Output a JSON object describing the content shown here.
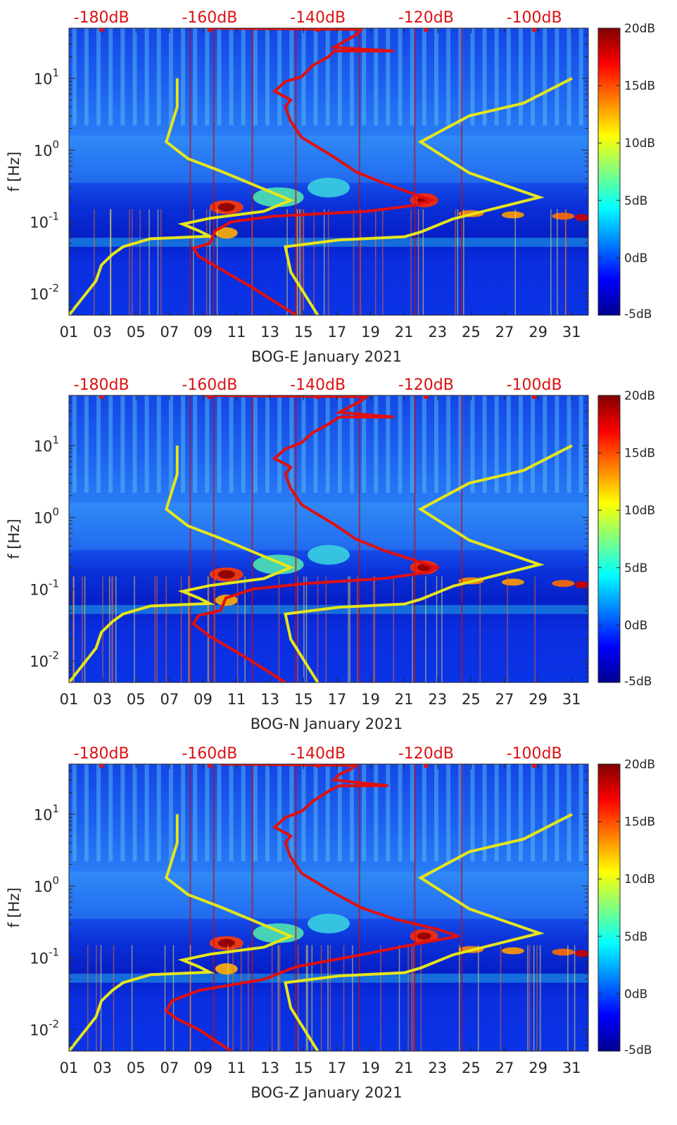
{
  "colors": {
    "noise_model": "#e6e61a",
    "psd_curve": "#e01010",
    "top_scale": "#dd1111",
    "text": "#262626",
    "colormap": [
      "#00008f",
      "#0000ff",
      "#0080ff",
      "#00ffff",
      "#80ff80",
      "#ffff00",
      "#ff8000",
      "#ff0000",
      "#800000"
    ]
  },
  "chart_data": [
    {
      "type": "heatmap",
      "title": "",
      "xlabel": "BOG-E January 2021",
      "ylabel": "f [Hz]",
      "x_ticks": [
        "01",
        "03",
        "05",
        "07",
        "09",
        "11",
        "13",
        "15",
        "17",
        "19",
        "21",
        "23",
        "25",
        "27",
        "29",
        "31"
      ],
      "x_range": [
        1,
        32
      ],
      "y_scale": "log",
      "y_range": [
        0.005,
        50
      ],
      "y_ticks": [
        {
          "base": "10",
          "exp": "1",
          "value": 10
        },
        {
          "base": "10",
          "exp": "0",
          "value": 1
        },
        {
          "base": "10",
          "exp": "-1",
          "value": 0.1
        },
        {
          "base": "10",
          "exp": "-2",
          "value": 0.01
        }
      ],
      "colorbar": {
        "labels": [
          "20dB",
          "15dB",
          "10dB",
          "5dB",
          "0dB",
          "-5dB"
        ],
        "range": [
          -5,
          20
        ]
      },
      "top_scale": {
        "labels": [
          "-180dB",
          "-160dB",
          "-140dB",
          "-120dB",
          "-100dB"
        ],
        "values": [
          -180,
          -160,
          -140,
          -120,
          -100
        ],
        "range": [
          -186,
          -90
        ]
      },
      "noise_model_low": [
        [
          -186,
          0.005
        ],
        [
          -181,
          0.015
        ],
        [
          -180,
          0.025
        ],
        [
          -178,
          0.035
        ],
        [
          -176,
          0.045
        ],
        [
          -171,
          0.058
        ],
        [
          -160,
          0.063
        ],
        [
          -162,
          0.075
        ],
        [
          -165,
          0.093
        ],
        [
          -160,
          0.112
        ],
        [
          -150,
          0.14
        ],
        [
          -145,
          0.2
        ],
        [
          -158,
          0.51
        ],
        [
          -164,
          0.76
        ],
        [
          -168,
          1.3
        ],
        [
          -166,
          4.0
        ],
        [
          -166,
          10
        ]
      ],
      "noise_model_high": [
        [
          -140,
          0.005
        ],
        [
          -145,
          0.02
        ],
        [
          -146,
          0.045
        ],
        [
          -136,
          0.056
        ],
        [
          -124,
          0.062
        ],
        [
          -121,
          0.072
        ],
        [
          -115,
          0.11
        ],
        [
          -99,
          0.22
        ],
        [
          -112,
          0.48
        ],
        [
          -121,
          1.3
        ],
        [
          -112,
          3.0
        ],
        [
          -102,
          4.5
        ],
        [
          -93,
          10
        ]
      ],
      "psd_curve": [
        [
          -144,
          0.005
        ],
        [
          -152,
          0.012
        ],
        [
          -158,
          0.022
        ],
        [
          -162,
          0.033
        ],
        [
          -163,
          0.043
        ],
        [
          -160,
          0.05
        ],
        [
          -159,
          0.075
        ],
        [
          -156,
          0.1
        ],
        [
          -148,
          0.12
        ],
        [
          -131,
          0.14
        ],
        [
          -122,
          0.17
        ],
        [
          -119,
          0.2
        ],
        [
          -122,
          0.24
        ],
        [
          -128,
          0.35
        ],
        [
          -133,
          0.5
        ],
        [
          -137,
          0.8
        ],
        [
          -143,
          1.5
        ],
        [
          -145,
          2.5
        ],
        [
          -146,
          4.0
        ],
        [
          -145,
          5.0
        ],
        [
          -148,
          6.6
        ],
        [
          -146,
          9.0
        ],
        [
          -143,
          10.5
        ],
        [
          -141,
          15
        ],
        [
          -138,
          20
        ],
        [
          -137,
          24
        ],
        [
          -126,
          24
        ],
        [
          -137,
          27
        ],
        [
          -135,
          33
        ],
        [
          -133,
          40
        ],
        [
          -132,
          48
        ],
        [
          -160,
          50
        ]
      ]
    },
    {
      "type": "heatmap",
      "title": "",
      "xlabel": "BOG-N January 2021",
      "ylabel": "f [Hz]",
      "x_ticks": [
        "01",
        "03",
        "05",
        "07",
        "09",
        "11",
        "13",
        "15",
        "17",
        "19",
        "21",
        "23",
        "25",
        "27",
        "29",
        "31"
      ],
      "x_range": [
        1,
        32
      ],
      "y_scale": "log",
      "y_range": [
        0.005,
        50
      ],
      "y_ticks": [
        {
          "base": "10",
          "exp": "1",
          "value": 10
        },
        {
          "base": "10",
          "exp": "0",
          "value": 1
        },
        {
          "base": "10",
          "exp": "-1",
          "value": 0.1
        },
        {
          "base": "10",
          "exp": "-2",
          "value": 0.01
        }
      ],
      "colorbar": {
        "labels": [
          "20dB",
          "15dB",
          "10dB",
          "5dB",
          "0dB",
          "-5dB"
        ],
        "range": [
          -5,
          20
        ]
      },
      "top_scale": {
        "labels": [
          "-180dB",
          "-160dB",
          "-140dB",
          "-120dB",
          "-100dB"
        ],
        "values": [
          -180,
          -160,
          -140,
          -120,
          -100
        ],
        "range": [
          -186,
          -90
        ]
      },
      "noise_model_low": [
        [
          -186,
          0.005
        ],
        [
          -181,
          0.015
        ],
        [
          -180,
          0.025
        ],
        [
          -178,
          0.035
        ],
        [
          -176,
          0.045
        ],
        [
          -171,
          0.058
        ],
        [
          -160,
          0.063
        ],
        [
          -162,
          0.075
        ],
        [
          -165,
          0.093
        ],
        [
          -160,
          0.112
        ],
        [
          -150,
          0.14
        ],
        [
          -145,
          0.2
        ],
        [
          -158,
          0.51
        ],
        [
          -164,
          0.76
        ],
        [
          -168,
          1.3
        ],
        [
          -166,
          4.0
        ],
        [
          -166,
          10
        ]
      ],
      "noise_model_high": [
        [
          -140,
          0.005
        ],
        [
          -145,
          0.02
        ],
        [
          -146,
          0.045
        ],
        [
          -136,
          0.056
        ],
        [
          -124,
          0.062
        ],
        [
          -121,
          0.072
        ],
        [
          -115,
          0.11
        ],
        [
          -99,
          0.22
        ],
        [
          -112,
          0.48
        ],
        [
          -121,
          1.3
        ],
        [
          -112,
          3.0
        ],
        [
          -102,
          4.5
        ],
        [
          -93,
          10
        ]
      ],
      "psd_curve": [
        [
          -146,
          0.005
        ],
        [
          -154,
          0.012
        ],
        [
          -160,
          0.022
        ],
        [
          -163,
          0.033
        ],
        [
          -162,
          0.043
        ],
        [
          -158,
          0.05
        ],
        [
          -157,
          0.075
        ],
        [
          -152,
          0.1
        ],
        [
          -142,
          0.12
        ],
        [
          -128,
          0.14
        ],
        [
          -120,
          0.17
        ],
        [
          -118,
          0.2
        ],
        [
          -122,
          0.25
        ],
        [
          -128,
          0.35
        ],
        [
          -133,
          0.5
        ],
        [
          -137,
          0.8
        ],
        [
          -143,
          1.5
        ],
        [
          -145,
          2.5
        ],
        [
          -146,
          4.0
        ],
        [
          -145,
          5.0
        ],
        [
          -148,
          6.6
        ],
        [
          -146,
          9.0
        ],
        [
          -143,
          11
        ],
        [
          -141,
          15
        ],
        [
          -138,
          20
        ],
        [
          -136,
          25
        ],
        [
          -126,
          25
        ],
        [
          -136,
          29
        ],
        [
          -134,
          35
        ],
        [
          -132,
          42
        ],
        [
          -131,
          48
        ],
        [
          -161,
          50
        ]
      ]
    },
    {
      "type": "heatmap",
      "title": "",
      "xlabel": "BOG-Z January 2021",
      "ylabel": "f [Hz]",
      "x_ticks": [
        "01",
        "03",
        "05",
        "07",
        "09",
        "11",
        "13",
        "15",
        "17",
        "19",
        "21",
        "23",
        "25",
        "27",
        "29",
        "31"
      ],
      "x_range": [
        1,
        32
      ],
      "y_scale": "log",
      "y_range": [
        0.005,
        50
      ],
      "y_ticks": [
        {
          "base": "10",
          "exp": "1",
          "value": 10
        },
        {
          "base": "10",
          "exp": "0",
          "value": 1
        },
        {
          "base": "10",
          "exp": "-1",
          "value": 0.1
        },
        {
          "base": "10",
          "exp": "-2",
          "value": 0.01
        }
      ],
      "colorbar": {
        "labels": [
          "20dB",
          "15dB",
          "10dB",
          "5dB",
          "0dB",
          "-5dB"
        ],
        "range": [
          -5,
          20
        ]
      },
      "top_scale": {
        "labels": [
          "-180dB",
          "-160dB",
          "-140dB",
          "-120dB",
          "-100dB"
        ],
        "values": [
          -180,
          -160,
          -140,
          -120,
          -100
        ],
        "range": [
          -186,
          -90
        ]
      },
      "noise_model_low": [
        [
          -186,
          0.005
        ],
        [
          -181,
          0.015
        ],
        [
          -180,
          0.025
        ],
        [
          -178,
          0.035
        ],
        [
          -176,
          0.045
        ],
        [
          -171,
          0.058
        ],
        [
          -160,
          0.063
        ],
        [
          -162,
          0.075
        ],
        [
          -165,
          0.093
        ],
        [
          -160,
          0.112
        ],
        [
          -150,
          0.14
        ],
        [
          -145,
          0.2
        ],
        [
          -158,
          0.51
        ],
        [
          -164,
          0.76
        ],
        [
          -168,
          1.3
        ],
        [
          -166,
          4.0
        ],
        [
          -166,
          10
        ]
      ],
      "noise_model_high": [
        [
          -140,
          0.005
        ],
        [
          -145,
          0.02
        ],
        [
          -146,
          0.045
        ],
        [
          -136,
          0.056
        ],
        [
          -124,
          0.062
        ],
        [
          -121,
          0.072
        ],
        [
          -115,
          0.11
        ],
        [
          -99,
          0.22
        ],
        [
          -112,
          0.48
        ],
        [
          -121,
          1.3
        ],
        [
          -112,
          3.0
        ],
        [
          -102,
          4.5
        ],
        [
          -93,
          10
        ]
      ],
      "psd_curve": [
        [
          -156,
          0.005
        ],
        [
          -162,
          0.01
        ],
        [
          -166,
          0.014
        ],
        [
          -168,
          0.018
        ],
        [
          -167,
          0.025
        ],
        [
          -162,
          0.035
        ],
        [
          -150,
          0.05
        ],
        [
          -144,
          0.075
        ],
        [
          -132,
          0.11
        ],
        [
          -122,
          0.155
        ],
        [
          -114,
          0.2
        ],
        [
          -118,
          0.25
        ],
        [
          -126,
          0.35
        ],
        [
          -132,
          0.5
        ],
        [
          -137,
          0.8
        ],
        [
          -143,
          1.5
        ],
        [
          -145,
          2.5
        ],
        [
          -146,
          4.0
        ],
        [
          -145,
          5.0
        ],
        [
          -148,
          6.6
        ],
        [
          -146,
          9.0
        ],
        [
          -143,
          11
        ],
        [
          -141,
          15
        ],
        [
          -138,
          21
        ],
        [
          -136,
          25
        ],
        [
          -127,
          25
        ],
        [
          -137,
          30
        ],
        [
          -136,
          36
        ],
        [
          -134,
          42
        ],
        [
          -133,
          48
        ],
        [
          -158,
          50
        ]
      ]
    }
  ]
}
